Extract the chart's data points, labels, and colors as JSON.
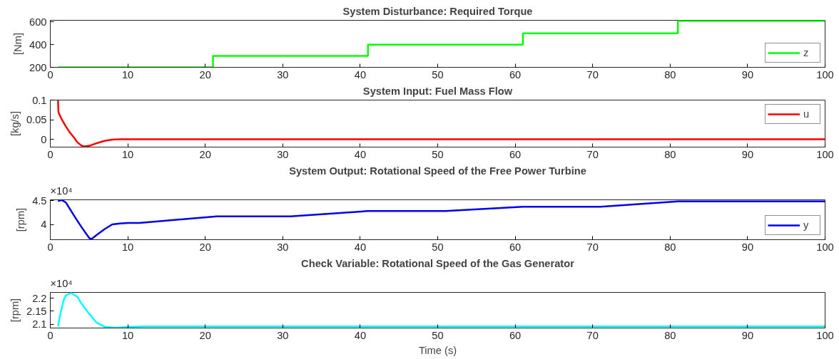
{
  "chart_data": [
    {
      "type": "step",
      "title": "System Disturbance: Required Torque",
      "ylabel": "[Nm]",
      "xlim": [
        0,
        100
      ],
      "xticks": [
        0,
        10,
        20,
        30,
        40,
        50,
        60,
        70,
        80,
        90,
        100
      ],
      "ylim": [
        200,
        615
      ],
      "yticks": [
        200,
        400,
        600
      ],
      "grid": false,
      "legend": "bottom right",
      "series": [
        {
          "name": "z",
          "color": "#00ff00",
          "x": [
            1,
            21,
            41,
            61,
            81,
            100
          ],
          "values": [
            200,
            300,
            400,
            500,
            610,
            610
          ]
        }
      ]
    },
    {
      "type": "line",
      "title": "System Input: Fuel Mass Flow",
      "ylabel": "[kg/s]",
      "xlim": [
        0,
        100
      ],
      "xticks": [
        0,
        10,
        20,
        30,
        40,
        50,
        60,
        70,
        80,
        90,
        100
      ],
      "ylim": [
        -0.02,
        0.1
      ],
      "yticks": [
        0,
        0.05,
        0.1
      ],
      "grid": false,
      "legend": "top right",
      "series": [
        {
          "name": "u",
          "color": "#ff0000",
          "x": [
            1,
            1.05,
            1.2,
            1.5,
            2,
            2.5,
            3,
            3.5,
            4,
            4.3,
            5,
            6,
            7,
            8,
            9,
            10,
            20,
            100
          ],
          "values": [
            0.1,
            0.07,
            0.062,
            0.05,
            0.033,
            0.018,
            0.006,
            -0.008,
            -0.016,
            -0.018,
            -0.017,
            -0.01,
            -0.004,
            -0.001,
            0,
            0,
            0,
            0
          ]
        }
      ]
    },
    {
      "type": "line",
      "title": "System Output: Rotational Speed of the Free Power Turbine",
      "ylabel": "[rpm]",
      "annotations": [
        "×10⁴"
      ],
      "xlim": [
        0,
        100
      ],
      "xticks": [
        0,
        10,
        20,
        30,
        40,
        50,
        60,
        70,
        80,
        90,
        100
      ],
      "ylim": [
        3.68,
        4.515
      ],
      "yticks": [
        4,
        4.5
      ],
      "grid": false,
      "legend": "bottom right",
      "series": [
        {
          "name": "y",
          "color": "#0000ee",
          "x": [
            1,
            1.5,
            2,
            3,
            4,
            5,
            5.3,
            6,
            7,
            8,
            9,
            10,
            11.5,
            21.5,
            31,
            41,
            51,
            61,
            71,
            81,
            100
          ],
          "values": [
            4.49,
            4.51,
            4.46,
            4.2,
            3.95,
            3.72,
            3.69,
            3.78,
            3.9,
            4.0,
            4.02,
            4.03,
            4.03,
            4.17,
            4.17,
            4.28,
            4.28,
            4.37,
            4.37,
            4.48,
            4.48
          ]
        }
      ]
    },
    {
      "type": "line",
      "title": "Check Variable: Rotational Speed of the Gas Generator",
      "ylabel": "[rpm]",
      "xlabel": "Time (s)",
      "annotations": [
        "×10⁴"
      ],
      "xlim": [
        0,
        100
      ],
      "xticks": [
        0,
        10,
        20,
        30,
        40,
        50,
        60,
        70,
        80,
        90,
        100
      ],
      "ylim": [
        2.085,
        2.222
      ],
      "yticks": [
        2.1,
        2.15,
        2.2
      ],
      "grid": false,
      "legend": false,
      "series": [
        {
          "color": "#00ffff",
          "x": [
            1,
            1.3,
            1.7,
            2,
            2.7,
            3.5,
            4,
            5,
            6,
            7,
            8,
            8.3,
            9,
            10,
            12,
            100
          ],
          "values": [
            2.092,
            2.14,
            2.19,
            2.21,
            2.22,
            2.205,
            2.18,
            2.14,
            2.105,
            2.09,
            2.087,
            2.086,
            2.087,
            2.089,
            2.091,
            2.091
          ]
        }
      ]
    }
  ]
}
